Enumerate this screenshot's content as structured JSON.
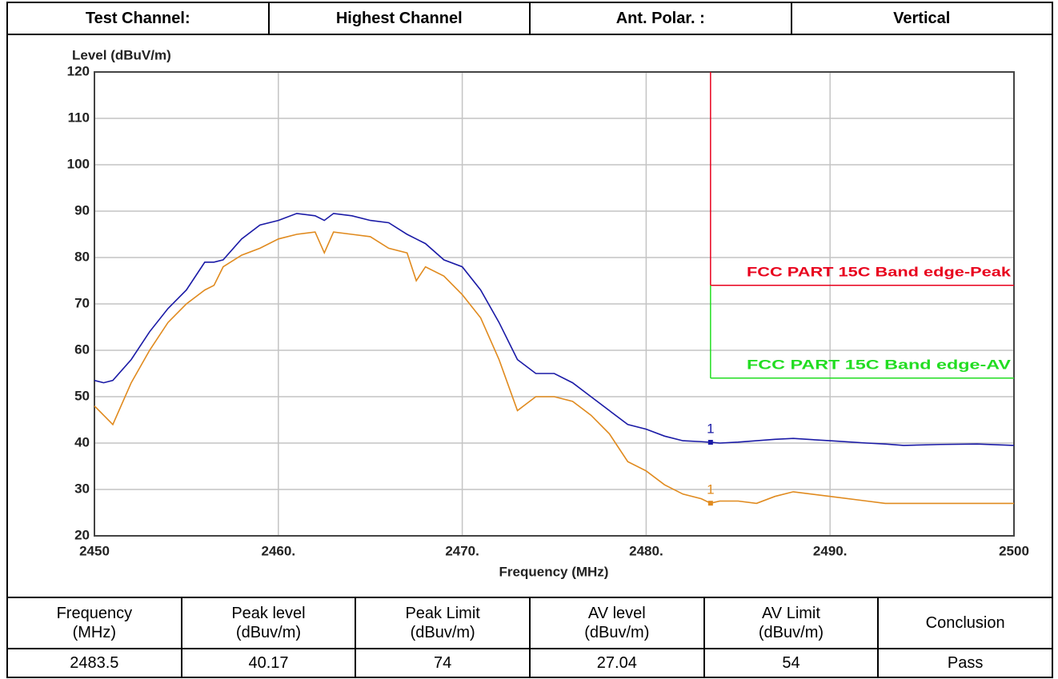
{
  "header": {
    "cells": [
      "Test Channel:",
      "Highest Channel",
      "Ant. Polar. :",
      "Vertical"
    ]
  },
  "chart_data": {
    "type": "line",
    "ylabel": "Level (dBuV/m)",
    "xlabel": "Frequency (MHz)",
    "x": [
      2450,
      2450.5,
      2451,
      2452,
      2453,
      2454,
      2455,
      2456,
      2456.5,
      2457,
      2458,
      2459,
      2460,
      2461,
      2462,
      2462.5,
      2463,
      2464,
      2465,
      2466,
      2467,
      2467.5,
      2468,
      2469,
      2470,
      2471,
      2472,
      2473,
      2474,
      2475,
      2476,
      2477,
      2478,
      2479,
      2480,
      2481,
      2482,
      2483,
      2483.5,
      2484,
      2485,
      2486,
      2487,
      2488,
      2490,
      2492,
      2493,
      2494,
      2496,
      2498,
      2500
    ],
    "series": [
      {
        "color": "#1a1aa6",
        "marker_label": "1",
        "marker_x": 2483.5,
        "values": [
          53.5,
          53,
          53.5,
          58,
          64,
          69,
          73,
          79,
          79,
          79.5,
          84,
          87,
          88,
          89.5,
          89,
          88,
          89.5,
          89,
          88,
          87.5,
          85,
          84,
          83,
          79.5,
          78,
          73,
          66,
          58,
          55,
          55,
          53,
          50,
          47,
          44,
          43,
          41.5,
          40.5,
          40.3,
          40.17,
          40,
          40.2,
          40.5,
          40.8,
          41,
          40.5,
          40,
          39.8,
          39.5,
          39.7,
          39.8,
          39.5
        ]
      },
      {
        "color": "#e08a1e",
        "marker_label": "1",
        "marker_x": 2483.5,
        "values": [
          48,
          46,
          44,
          53,
          60,
          66,
          70,
          73,
          74,
          78,
          80.5,
          82,
          84,
          85,
          85.5,
          81,
          85.5,
          85,
          84.5,
          82,
          81,
          75,
          78,
          76,
          72,
          67,
          58,
          47,
          50,
          50,
          49,
          46,
          42,
          36,
          34,
          31,
          29,
          28,
          27.04,
          27.5,
          27.5,
          27,
          28.5,
          29.5,
          28.5,
          27.5,
          27,
          27,
          27,
          27,
          27
        ]
      }
    ],
    "limits": [
      {
        "label": "FCC PART 15C Band edge-Peak",
        "color": "#e8001c",
        "x": 2483.5,
        "value": 74
      },
      {
        "label": "FCC PART 15C Band edge-AV",
        "color": "#22dd22",
        "x": 2483.5,
        "value": 54
      }
    ],
    "xlim": [
      2450,
      2500
    ],
    "xticks": [
      2450,
      {
        "value": 2460,
        "label": "2460."
      },
      {
        "value": 2470,
        "label": "2470."
      },
      {
        "value": 2480,
        "label": "2480."
      },
      {
        "value": 2490,
        "label": "2490."
      },
      2500
    ],
    "ylim": [
      20,
      120
    ],
    "yticks": [
      20,
      30,
      40,
      50,
      60,
      70,
      80,
      90,
      100,
      110,
      120
    ],
    "grid": true
  },
  "table": {
    "header": [
      "Frequency\n(MHz)",
      "Peak level\n(dBuv/m)",
      "Peak Limit\n(dBuv/m)",
      "AV level\n(dBuv/m)",
      "AV Limit\n(dBuv/m)",
      "Conclusion"
    ],
    "rows": [
      [
        "2483.5",
        "40.17",
        "74",
        "27.04",
        "54",
        "Pass"
      ]
    ]
  }
}
